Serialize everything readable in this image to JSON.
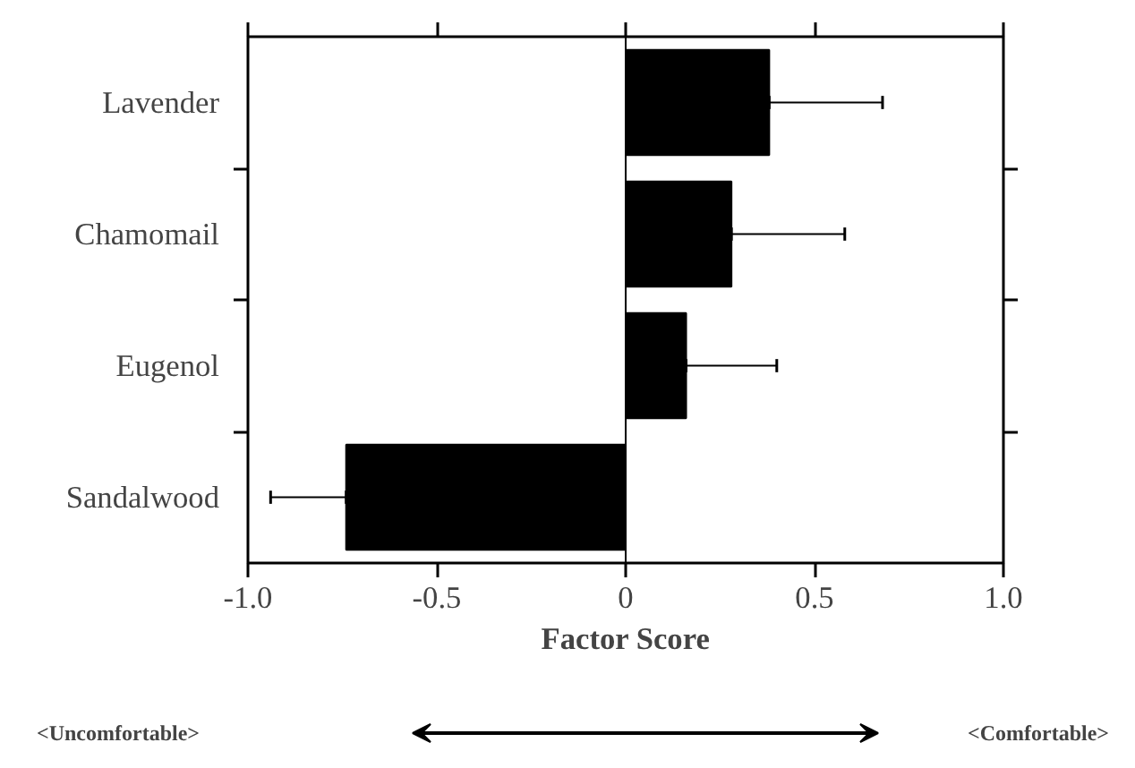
{
  "chart_data": {
    "type": "bar",
    "orientation": "horizontal",
    "categories": [
      "Lavender",
      "Chamomail",
      "Eugenol",
      "Sandalwood"
    ],
    "values": [
      0.38,
      0.28,
      0.16,
      -0.74
    ],
    "errors": [
      [
        0.38,
        0.68
      ],
      [
        0.28,
        0.58
      ],
      [
        0.16,
        0.4
      ],
      [
        -0.94,
        -0.74
      ]
    ],
    "color": "#000000",
    "xlabel": "Factor Score",
    "xlim": [
      -1.0,
      1.0
    ],
    "xticks": [
      {
        "value": -1.0,
        "label": "-1.0"
      },
      {
        "value": -0.5,
        "label": "-0.5"
      },
      0,
      0.5,
      {
        "value": 1.0,
        "label": "1.0"
      }
    ],
    "ref_lines": [
      {
        "axis": "x",
        "value": 0
      }
    ],
    "annotations": [
      "<Uncomfortable>",
      "<Comfortable>"
    ],
    "grid": false
  }
}
